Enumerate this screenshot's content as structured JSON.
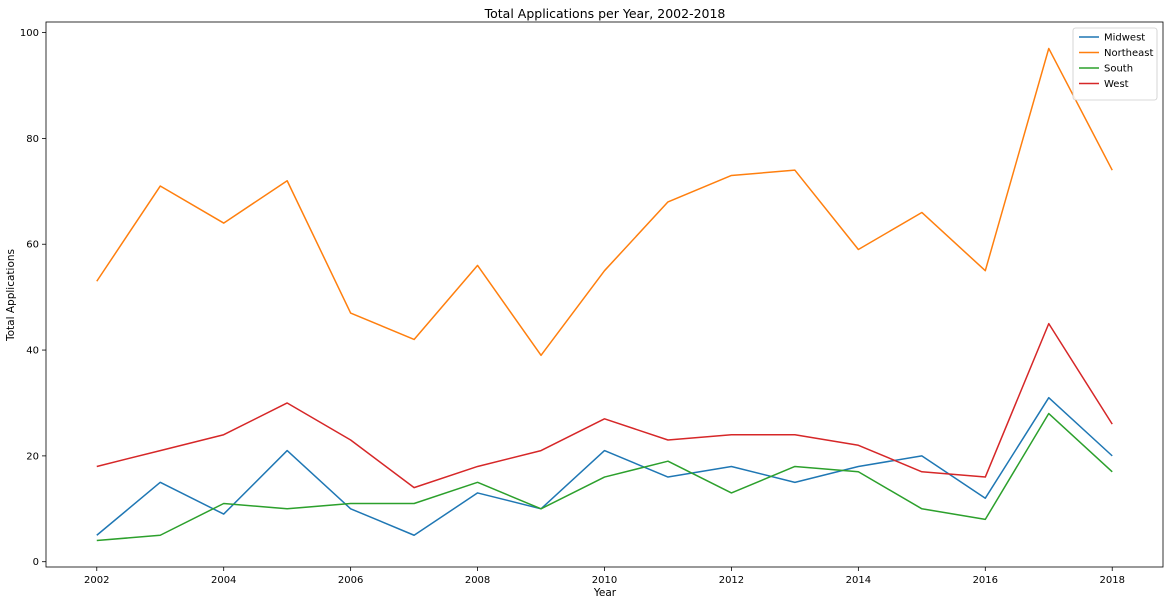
{
  "chart_data": {
    "type": "line",
    "title": "Total Applications per Year, 2002-2018",
    "xlabel": "Year",
    "ylabel": "Total Applications",
    "x": [
      2002,
      2003,
      2004,
      2005,
      2006,
      2007,
      2008,
      2009,
      2010,
      2011,
      2012,
      2013,
      2014,
      2015,
      2016,
      2017,
      2018
    ],
    "xlim": [
      2001.2,
      2018.8
    ],
    "ylim": [
      -1,
      102
    ],
    "x_ticks": [
      "2002",
      "2004",
      "2006",
      "2008",
      "2010",
      "2012",
      "2014",
      "2016",
      "2018"
    ],
    "y_ticks": [
      "0",
      "20",
      "40",
      "60",
      "80",
      "100"
    ],
    "grid": false,
    "legend": "top-right",
    "series": [
      {
        "name": "Midwest",
        "color": "#1f77b4",
        "values": [
          5,
          15,
          9,
          21,
          10,
          5,
          13,
          10,
          21,
          16,
          18,
          15,
          18,
          20,
          12,
          31,
          20
        ]
      },
      {
        "name": "Northeast",
        "color": "#ff7f0e",
        "values": [
          53,
          71,
          64,
          72,
          47,
          42,
          56,
          39,
          55,
          68,
          73,
          74,
          59,
          66,
          55,
          97,
          74
        ]
      },
      {
        "name": "South",
        "color": "#2ca02c",
        "values": [
          4,
          5,
          11,
          10,
          11,
          11,
          15,
          10,
          16,
          19,
          13,
          18,
          17,
          10,
          8,
          28,
          17
        ]
      },
      {
        "name": "West",
        "color": "#d62728",
        "values": [
          18,
          21,
          24,
          30,
          23,
          14,
          18,
          21,
          27,
          23,
          24,
          24,
          22,
          17,
          16,
          45,
          26
        ]
      }
    ]
  }
}
